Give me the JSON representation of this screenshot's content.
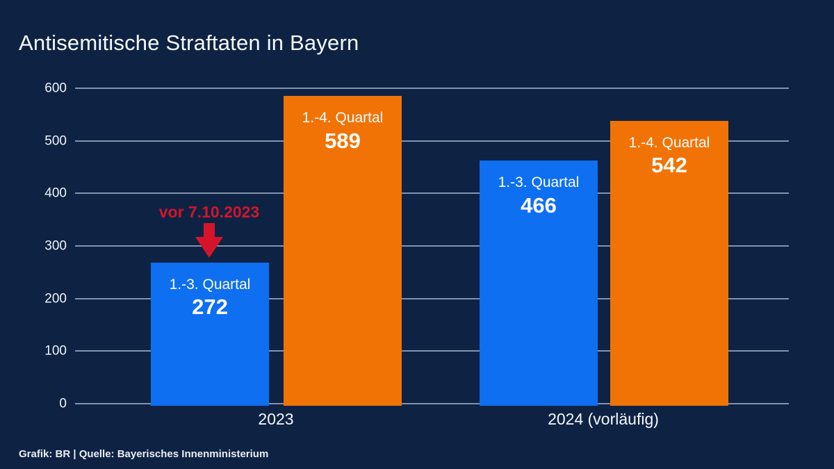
{
  "title": "Antisemitische Straftaten in Bayern",
  "footer": "Grafik: BR | Quelle: Bayerisches Innenministerium",
  "annotation": {
    "text": "vor 7.10.2023",
    "color": "#d5142b"
  },
  "chart_data": {
    "type": "bar",
    "title": "Antisemitische Straftaten in Bayern",
    "ylim": [
      0,
      600
    ],
    "yticks": [
      0,
      100,
      200,
      300,
      400,
      500,
      600
    ],
    "grid": true,
    "categories": [
      "2023",
      "2024 (vorläufig)"
    ],
    "series": [
      {
        "name": "1.-3. Quartal",
        "values": [
          272,
          466
        ],
        "color_key": "blue"
      },
      {
        "name": "1.-4. Quartal",
        "values": [
          589,
          542
        ],
        "color_key": "orange"
      }
    ],
    "groups": [
      {
        "label": "2023",
        "bars": [
          {
            "label": "1.-3. Quartal",
            "value": 272,
            "color": "blue"
          },
          {
            "label": "1.-4. Quartal",
            "value": 589,
            "color": "orange"
          }
        ]
      },
      {
        "label": "2024 (vorläufig)",
        "bars": [
          {
            "label": "1.-3. Quartal",
            "value": 466,
            "color": "blue"
          },
          {
            "label": "1.-4. Quartal",
            "value": 542,
            "color": "orange"
          }
        ]
      }
    ],
    "annotations": [
      {
        "text": "vor 7.10.2023",
        "target": "2023 / 1.-3. Quartal",
        "style": "red arrow pointing down at bar"
      }
    ],
    "colors": {
      "blue": "#0e6ff0",
      "orange": "#f17306",
      "background": "#0e2343",
      "gridline": "#8293ae",
      "red": "#d5142b",
      "text": "#f7f9fc"
    }
  }
}
